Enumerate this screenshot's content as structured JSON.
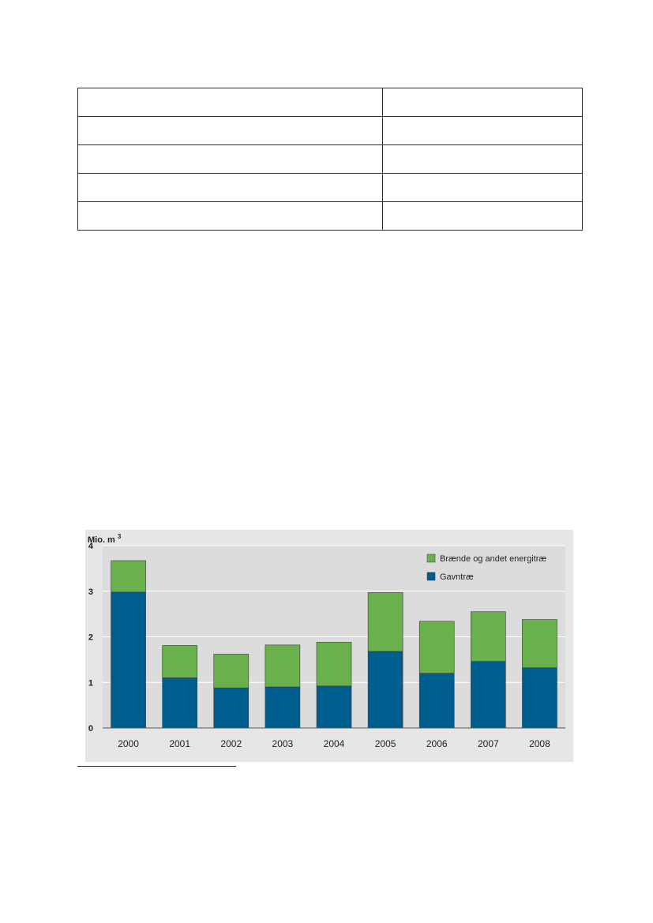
{
  "table": {
    "rows": 5,
    "columns": 2
  },
  "chart_data": {
    "type": "bar",
    "stacked": true,
    "unit": "Mio. m",
    "unit_superscript": "3",
    "categories": [
      "2000",
      "2001",
      "2002",
      "2003",
      "2004",
      "2005",
      "2006",
      "2007",
      "2008"
    ],
    "series": [
      {
        "name": "Gavntræ",
        "color": "#005e8f",
        "values": [
          2.98,
          1.1,
          0.88,
          0.9,
          0.92,
          1.68,
          1.2,
          1.46,
          1.32
        ]
      },
      {
        "name": "Brænde og andet energitræ",
        "color": "#6ab04c",
        "values": [
          0.69,
          0.71,
          0.74,
          0.92,
          0.96,
          1.29,
          1.14,
          1.09,
          1.06
        ]
      }
    ],
    "yticks": [
      "0",
      "1",
      "2",
      "3",
      "4"
    ],
    "ylim": [
      0,
      4
    ],
    "grid": true,
    "legend_position": "top-right",
    "background": "#e6e6e6",
    "plot_background": "#dcdcdc",
    "gridline_color": "#ffffff"
  }
}
